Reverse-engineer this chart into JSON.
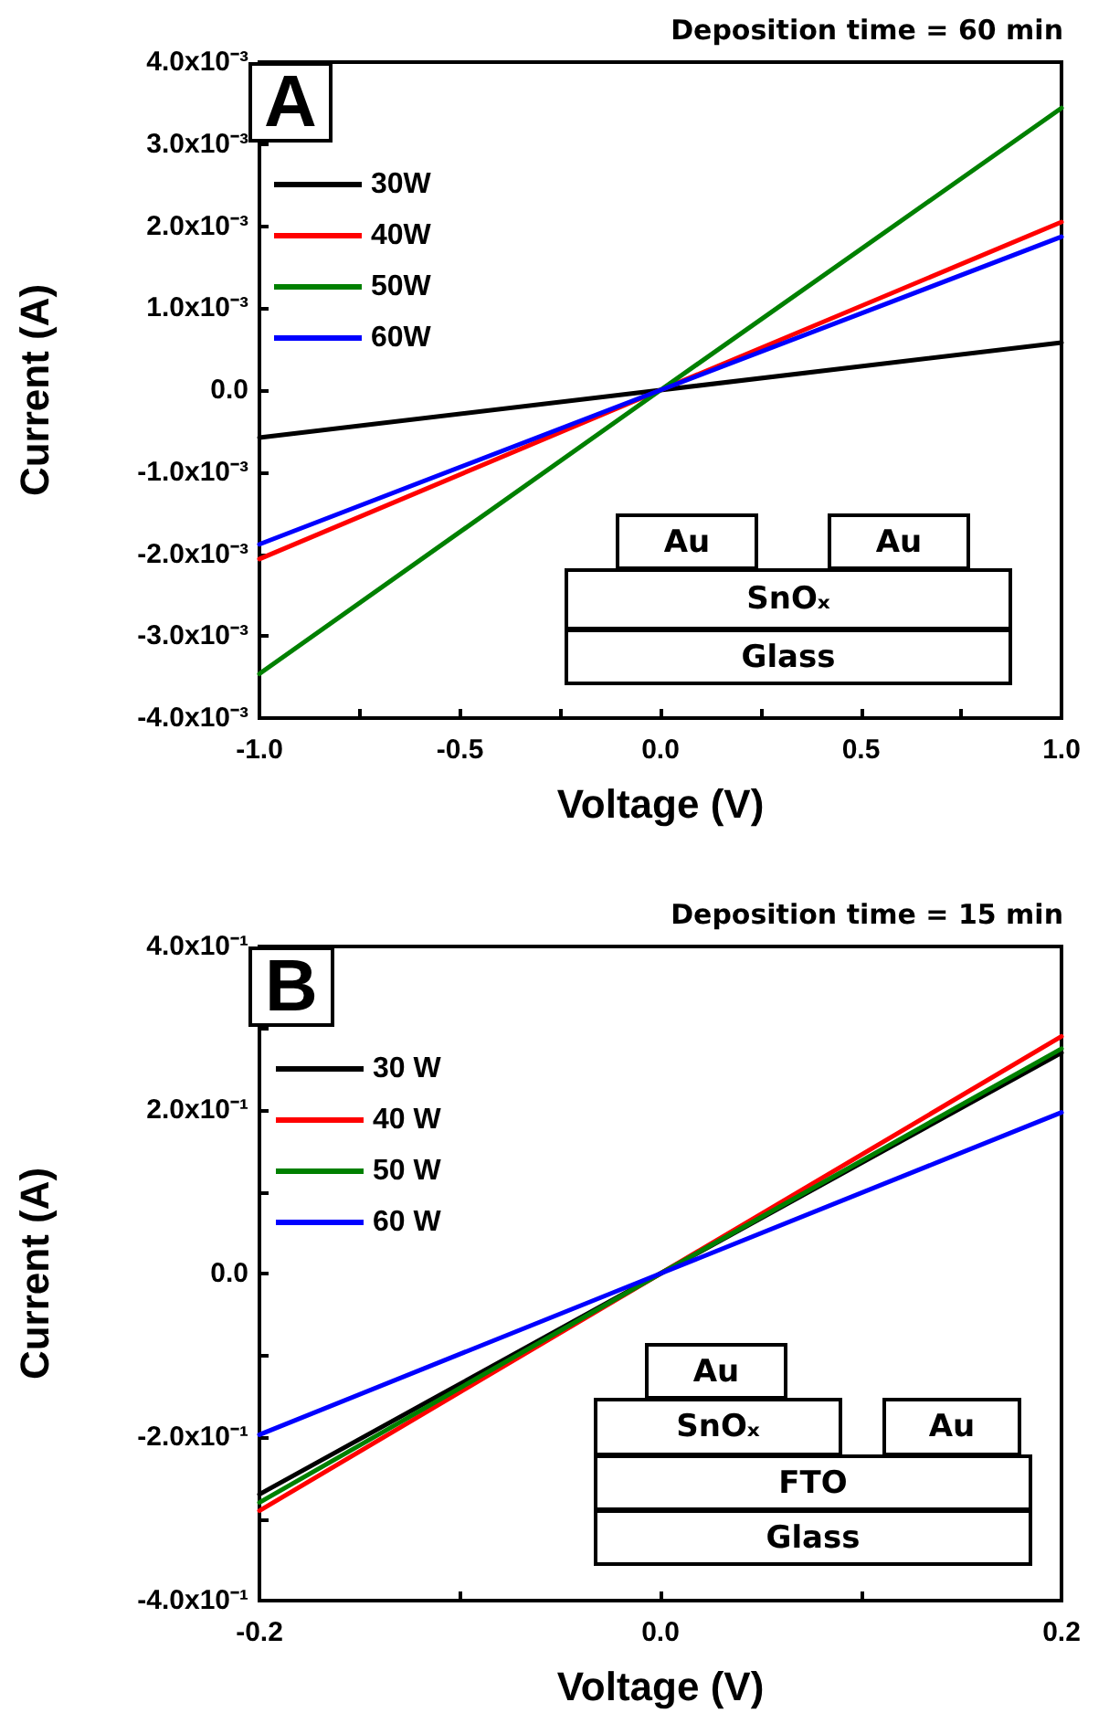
{
  "chart_data": [
    {
      "type": "line",
      "title": "Deposition time = 60 min",
      "xlabel": "Voltage (V)",
      "ylabel": "Current (A)",
      "annotations": [
        "A",
        "Au",
        "Au",
        "SnOₓ",
        "Glass"
      ],
      "x": [
        -1,
        0,
        1
      ],
      "series": [
        {
          "name": "30W",
          "color": "#000000",
          "values": [
            -0.00058,
            0,
            0.00058
          ]
        },
        {
          "name": "40W",
          "color": "#ff0000",
          "values": [
            -0.00206,
            0,
            0.00205
          ]
        },
        {
          "name": "50W",
          "color": "#008000",
          "values": [
            -0.00346,
            0,
            0.00344
          ]
        },
        {
          "name": "60W",
          "color": "#0000ff",
          "values": [
            -0.00188,
            0,
            0.00187
          ]
        }
      ],
      "xlim": [
        -1,
        1
      ],
      "ylim": [
        -0.004,
        0.004
      ],
      "xticks": [
        {
          "value": -1,
          "label": "-1.0"
        },
        {
          "value": -0.75,
          "label": null
        },
        {
          "value": -0.5,
          "label": "-0.5"
        },
        {
          "value": -0.25,
          "label": null
        },
        {
          "value": 0,
          "label": "0.0"
        },
        {
          "value": 0.25,
          "label": null
        },
        {
          "value": 0.5,
          "label": "0.5"
        },
        {
          "value": 0.75,
          "label": null
        },
        {
          "value": 1,
          "label": "1.0"
        }
      ],
      "yticks": [
        {
          "value": -0.004,
          "label": "-4.0x10⁻³"
        },
        {
          "value": -0.003,
          "label": "-3.0x10⁻³"
        },
        {
          "value": -0.002,
          "label": "-2.0x10⁻³"
        },
        {
          "value": -0.001,
          "label": "-1.0x10⁻³"
        },
        {
          "value": 0,
          "label": "0.0"
        },
        {
          "value": 0.001,
          "label": "1.0x10⁻³"
        },
        {
          "value": 0.002,
          "label": "2.0x10⁻³"
        },
        {
          "value": 0.003,
          "label": "3.0x10⁻³"
        },
        {
          "value": 0.004,
          "label": "4.0x10⁻³"
        }
      ],
      "legend": "top left",
      "marker": "none",
      "line_style": "solid"
    },
    {
      "type": "line",
      "title": "Deposition time = 15 min",
      "xlabel": "Voltage (V)",
      "ylabel": "Current (A)",
      "annotations": [
        "B",
        "Au",
        "SnOₓ",
        "Au",
        "FTO",
        "Glass"
      ],
      "x": [
        -0.2,
        0,
        0.2
      ],
      "series": [
        {
          "name": "30 W",
          "color": "#000000",
          "values": [
            -0.27,
            0,
            0.27
          ]
        },
        {
          "name": "40 W",
          "color": "#ff0000",
          "values": [
            -0.29,
            0,
            0.29
          ]
        },
        {
          "name": "50 W",
          "color": "#008000",
          "values": [
            -0.28,
            0,
            0.275
          ]
        },
        {
          "name": "60 W",
          "color": "#0000ff",
          "values": [
            -0.197,
            0,
            0.197
          ]
        }
      ],
      "xlim": [
        -0.2,
        0.2
      ],
      "ylim": [
        -0.4,
        0.4
      ],
      "xticks": [
        {
          "value": -0.2,
          "label": "-0.2"
        },
        {
          "value": -0.1,
          "label": null
        },
        {
          "value": 0,
          "label": "0.0"
        },
        {
          "value": 0.1,
          "label": null
        },
        {
          "value": 0.2,
          "label": "0.2"
        }
      ],
      "yticks": [
        {
          "value": -0.4,
          "label": "-4.0x10⁻¹"
        },
        {
          "value": -0.3,
          "label": null
        },
        {
          "value": -0.2,
          "label": "-2.0x10⁻¹"
        },
        {
          "value": -0.1,
          "label": null
        },
        {
          "value": 0,
          "label": "0.0"
        },
        {
          "value": 0.1,
          "label": null
        },
        {
          "value": 0.2,
          "label": "2.0x10⁻¹"
        },
        {
          "value": 0.3,
          "label": null
        },
        {
          "value": 0.4,
          "label": "4.0x10⁻¹"
        }
      ],
      "legend": "top left",
      "marker": "none",
      "line_style": "solid"
    }
  ]
}
